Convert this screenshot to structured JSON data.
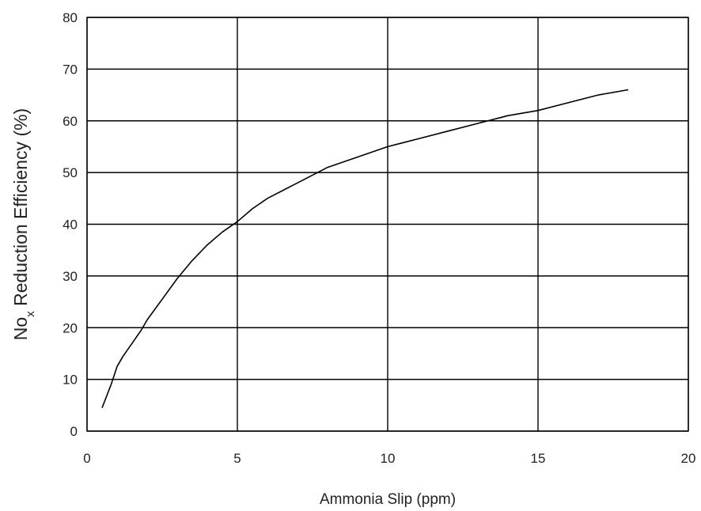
{
  "chart_data": {
    "type": "line",
    "title": "",
    "xlabel": "Ammonia Slip (ppm)",
    "ylabel_main": "No",
    "ylabel_sub": "x",
    "ylabel_rest": " Reduction Efficiency (%)",
    "xlim": [
      0,
      20
    ],
    "ylim": [
      0,
      80
    ],
    "xticks": [
      0,
      5,
      10,
      15,
      20
    ],
    "yticks": [
      0,
      10,
      20,
      30,
      40,
      50,
      60,
      70,
      80
    ],
    "grid": true,
    "line_color": "#000000",
    "grid_color": "#000000",
    "series": [
      {
        "x": [
          0.5,
          0.8,
          1.0,
          1.2,
          1.5,
          1.8,
          2.0,
          2.5,
          3.0,
          3.5,
          4.0,
          4.5,
          5.0,
          5.5,
          6.0,
          6.5,
          7.0,
          7.5,
          8.0,
          9.0,
          10.0,
          11.0,
          12.0,
          13.0,
          14.0,
          15.0,
          16.0,
          17.0,
          18.0
        ],
        "y": [
          4.5,
          9.0,
          12.5,
          14.5,
          17.0,
          19.5,
          21.5,
          25.5,
          29.5,
          33.0,
          36.0,
          38.5,
          40.5,
          43.0,
          45.0,
          46.5,
          48.0,
          49.5,
          51.0,
          53.0,
          55.0,
          56.5,
          58.0,
          59.5,
          61.0,
          62.0,
          63.5,
          65.0,
          66.0
        ]
      }
    ]
  }
}
